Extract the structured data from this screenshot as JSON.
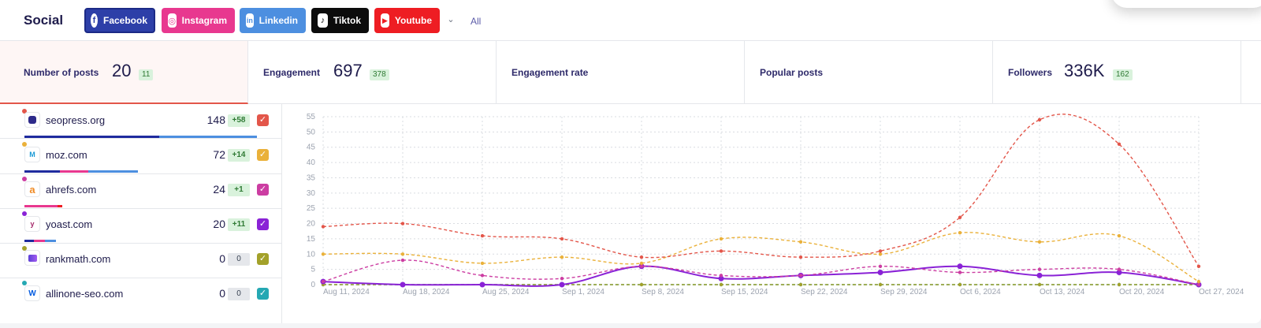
{
  "header": {
    "title": "Social",
    "networks": [
      {
        "label": "Facebook",
        "icon": "facebook-icon",
        "color": "#2d3fa8"
      },
      {
        "label": "Instagram",
        "icon": "instagram-icon",
        "color": "#e8388f"
      },
      {
        "label": "Linkedin",
        "icon": "linkedin-icon",
        "color": "#4d8fe0"
      },
      {
        "label": "Tiktok",
        "icon": "tiktok-icon",
        "color": "#0c0c0c"
      },
      {
        "label": "Youtube",
        "icon": "youtube-icon",
        "color": "#ee1d23"
      }
    ],
    "all_label": "All"
  },
  "metrics": [
    {
      "label": "Number of posts",
      "value": "20",
      "badge": "11",
      "active": true
    },
    {
      "label": "Engagement",
      "value": "697",
      "badge": "378"
    },
    {
      "label": "Engagement rate",
      "value": "",
      "badge": ""
    },
    {
      "label": "Popular posts",
      "value": "",
      "badge": ""
    },
    {
      "label": "Followers",
      "value": "336K",
      "badge": "162"
    }
  ],
  "sites": [
    {
      "name": "seopress.org",
      "count": "148",
      "delta": "+58",
      "color": "#e3564a",
      "icon": "seopress-favicon-icon"
    },
    {
      "name": "moz.com",
      "count": "72",
      "delta": "+14",
      "color": "#eab13a",
      "icon": "moz-favicon-icon"
    },
    {
      "name": "ahrefs.com",
      "count": "24",
      "delta": "+1",
      "color": "#cc3da2",
      "icon": "ahrefs-favicon-icon"
    },
    {
      "name": "yoast.com",
      "count": "20",
      "delta": "+11",
      "color": "#8a22d6",
      "icon": "yoast-favicon-icon"
    },
    {
      "name": "rankmath.com",
      "count": "0",
      "delta": "0",
      "color": "#a3a12a",
      "icon": "rankmath-favicon-icon"
    },
    {
      "name": "allinone-seo.com",
      "count": "0",
      "delta": "0",
      "color": "#25a8b3",
      "icon": "allinone-seo-favicon-icon"
    }
  ],
  "chart_data": {
    "type": "line",
    "x": [
      "Aug 11, 2024",
      "Aug 18, 2024",
      "Aug 25, 2024",
      "Sep 1, 2024",
      "Sep 8, 2024",
      "Sep 15, 2024",
      "Sep 22, 2024",
      "Sep 29, 2024",
      "Oct 6, 2024",
      "Oct 13, 2024",
      "Oct 20, 2024",
      "Oct 27, 2024"
    ],
    "ylim": [
      0,
      55
    ],
    "yticks": [
      0,
      5,
      10,
      15,
      20,
      25,
      30,
      35,
      40,
      45,
      50,
      55
    ],
    "grid": true,
    "series": [
      {
        "values": [
          19,
          20,
          16,
          15,
          9,
          11,
          9,
          11,
          22,
          54,
          46,
          6
        ],
        "color": "#e3564a",
        "style": "dashed"
      },
      {
        "values": [
          10,
          10,
          7,
          9,
          7,
          15,
          14,
          10,
          17,
          14,
          16,
          1
        ],
        "color": "#eab13a",
        "style": "dashed"
      },
      {
        "values": [
          1,
          8,
          3,
          2,
          6,
          3,
          3,
          6,
          4,
          5,
          5,
          0
        ],
        "color": "#cc3da2",
        "style": "dashed"
      },
      {
        "values": [
          1,
          0,
          0,
          0,
          6,
          2,
          3,
          4,
          6,
          3,
          4,
          0
        ],
        "color": "#8a22d6",
        "style": "solid"
      },
      {
        "values": [
          0,
          0,
          0,
          0,
          0,
          0,
          0,
          0,
          0,
          0,
          0,
          0
        ],
        "color": "#a3a12a",
        "style": "dashed"
      },
      {
        "values": [
          0,
          0,
          0,
          0,
          0,
          0,
          0,
          0,
          0,
          0,
          0,
          0
        ],
        "color": "#25a8b3",
        "style": "dashed"
      }
    ]
  }
}
